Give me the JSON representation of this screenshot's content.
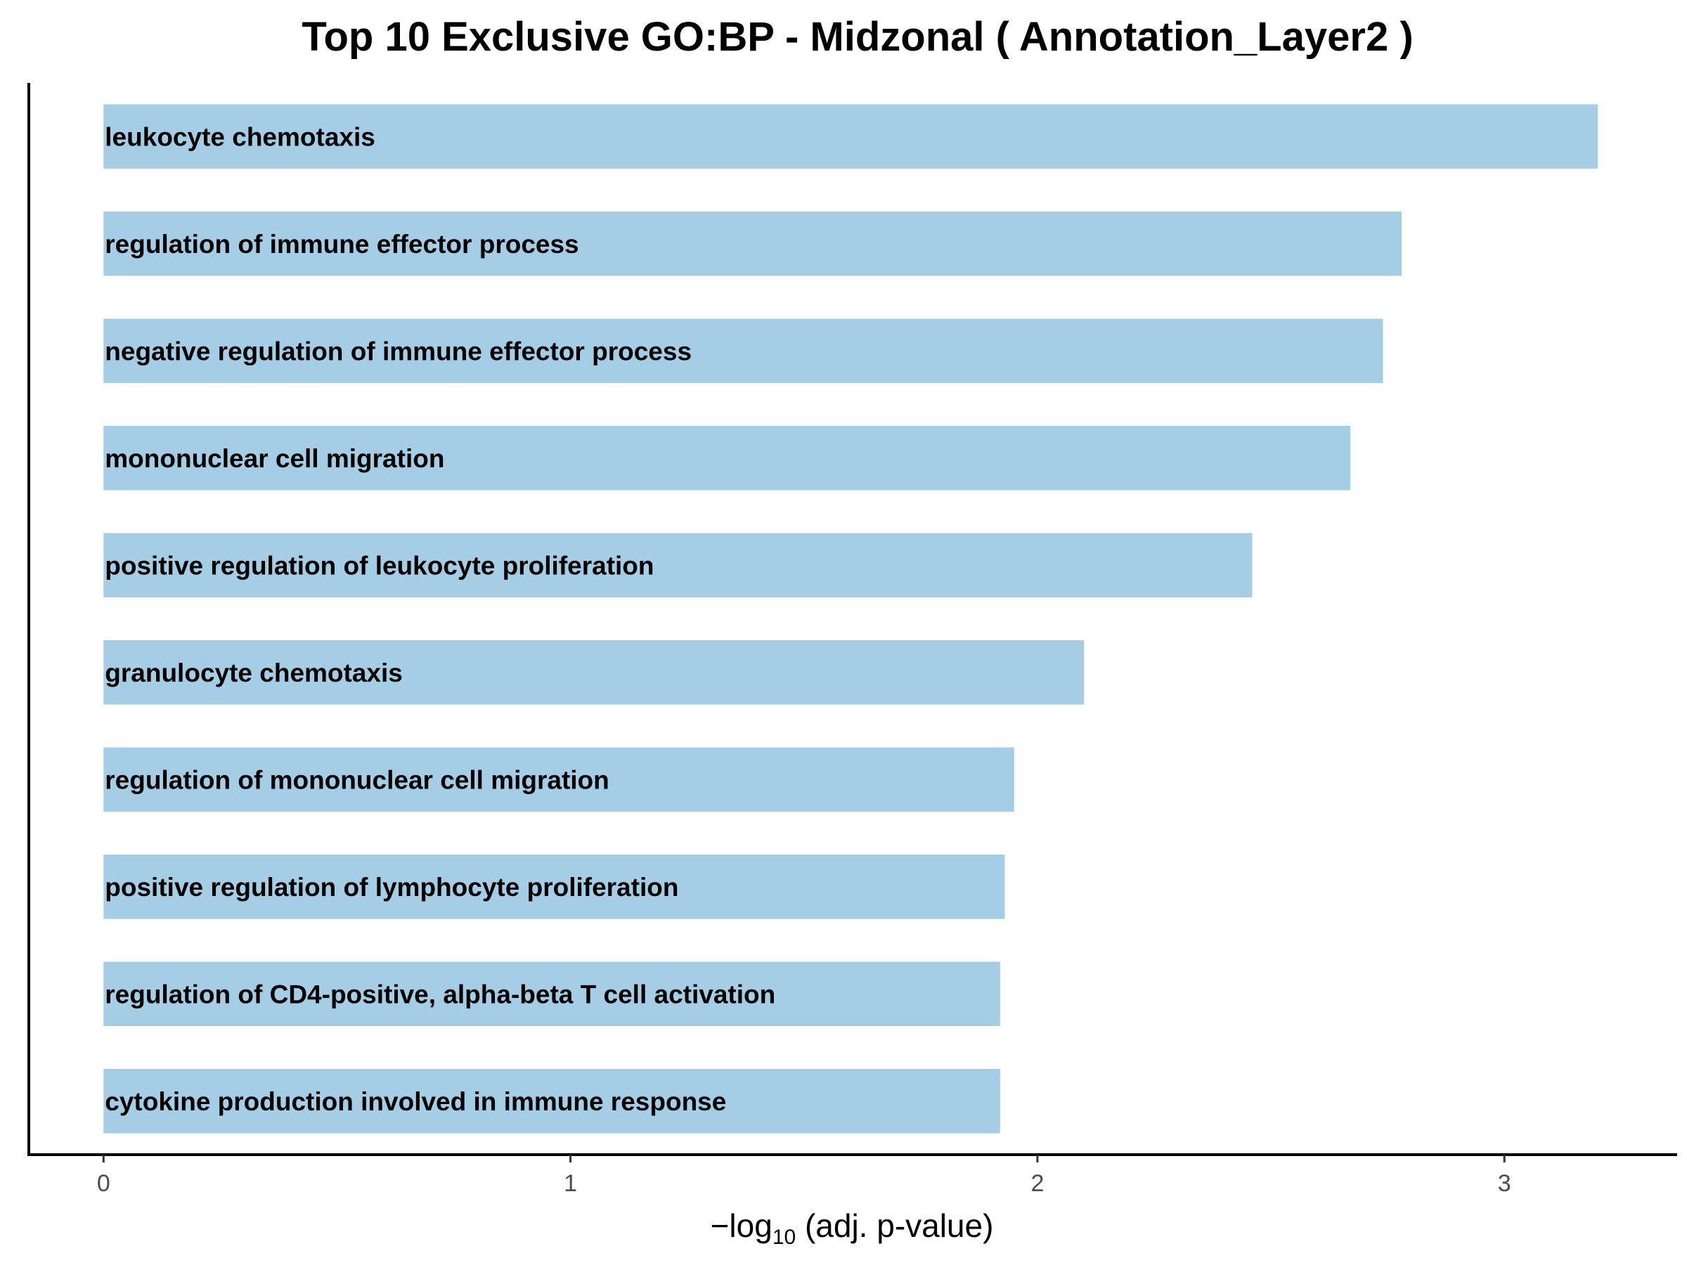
{
  "chart_data": {
    "type": "bar",
    "orientation": "horizontal",
    "title": "Top 10 Exclusive GO:BP - Midzonal ( Annotation_Layer2 )",
    "xlabel": {
      "prefix": "−log",
      "subscript": "10",
      "suffix": " (adj. p-value)"
    },
    "ylabel": "",
    "xlim": [
      -0.16,
      3.37
    ],
    "x_ticks": [
      0,
      1,
      2,
      3
    ],
    "x_tick_labels": [
      "0",
      "1",
      "2",
      "3"
    ],
    "grid": false,
    "bar_color": "#a6cde6",
    "categories": [
      "leukocyte chemotaxis",
      "regulation of immune effector process",
      "negative regulation of immune effector process",
      "mononuclear cell migration",
      "positive regulation of leukocyte proliferation",
      "granulocyte chemotaxis",
      "regulation of mononuclear cell migration",
      "positive regulation of lymphocyte proliferation",
      "regulation of CD4-positive, alpha-beta T cell activation",
      "cytokine production involved in immune response"
    ],
    "values": [
      3.2,
      2.78,
      2.74,
      2.67,
      2.46,
      2.1,
      1.95,
      1.93,
      1.92,
      1.92
    ]
  }
}
